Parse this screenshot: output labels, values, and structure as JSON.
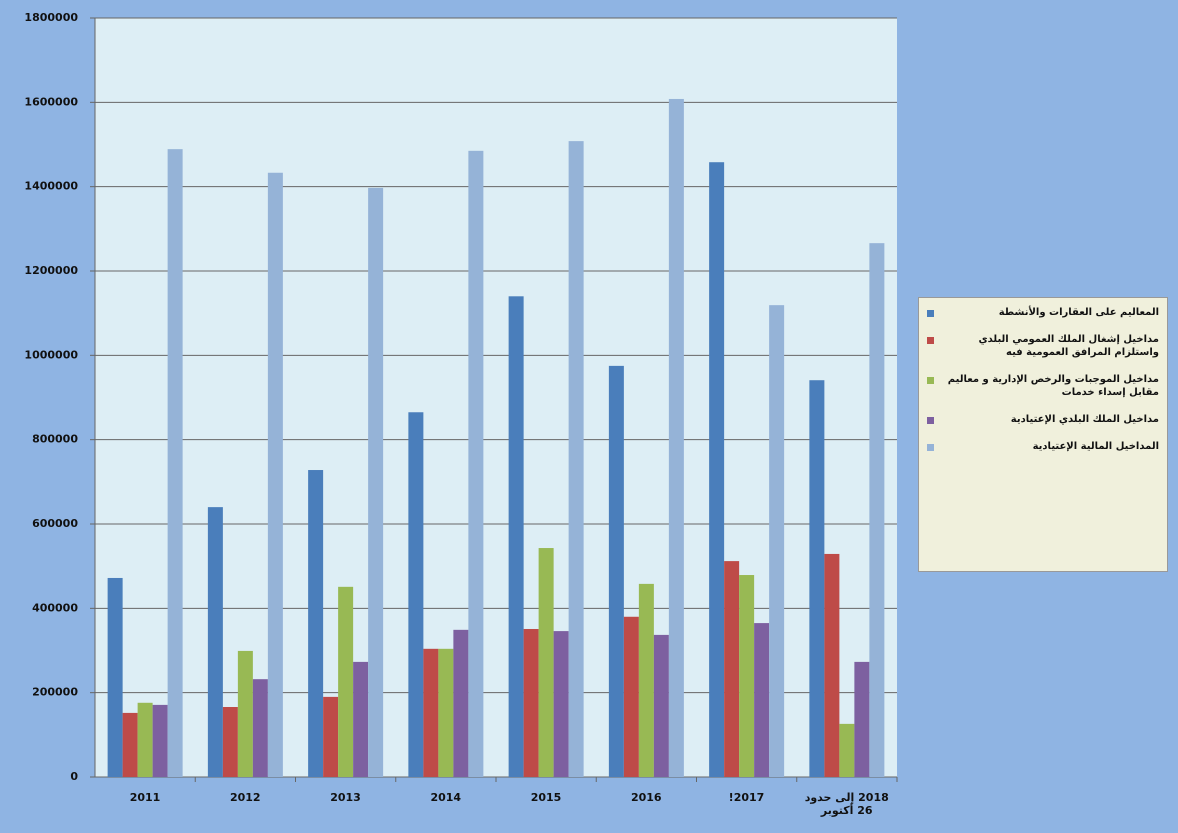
{
  "chart_data": {
    "type": "bar",
    "categories": [
      "2011",
      "2012",
      "2013",
      "2014",
      "2015",
      "2016",
      "2017!",
      "2018 إلى حدود 26 أكتوبر"
    ],
    "series": [
      {
        "name": "المعاليم على العقارات والأنشطة",
        "color": "#4a7ebb",
        "values": [
          472000,
          640000,
          728000,
          865000,
          1140000,
          975000,
          1458000,
          941000
        ]
      },
      {
        "name": "مداخيل إشغال الملك العمومي البلدي واستلزام المرافق العمومية فيه",
        "color": "#be4b48",
        "values": [
          152000,
          166000,
          190000,
          304000,
          351000,
          380000,
          512000,
          529000
        ]
      },
      {
        "name": "مداخيل الموجبات والرخص الإدارية و معاليم مقابل إسداء خدمات",
        "color": "#98b954",
        "values": [
          176000,
          299000,
          451000,
          304000,
          543000,
          458000,
          479000,
          126000
        ]
      },
      {
        "name": "مداخيل الملك البلدي الإعتيادية",
        "color": "#7d60a0",
        "values": [
          171000,
          232000,
          273000,
          349000,
          346000,
          337000,
          365000,
          273000
        ]
      },
      {
        "name": "المداخيل المالية الإعتيادية",
        "color": "#95b3d7",
        "values": [
          1489000,
          1433000,
          1397000,
          1485000,
          1508000,
          1608000,
          1119000,
          1266000
        ]
      }
    ],
    "ylim": [
      0,
      1800000
    ],
    "yticks": [
      0,
      200000,
      400000,
      600000,
      800000,
      1000000,
      1200000,
      1400000,
      1600000,
      1800000
    ],
    "grid": true,
    "legend": "right"
  }
}
